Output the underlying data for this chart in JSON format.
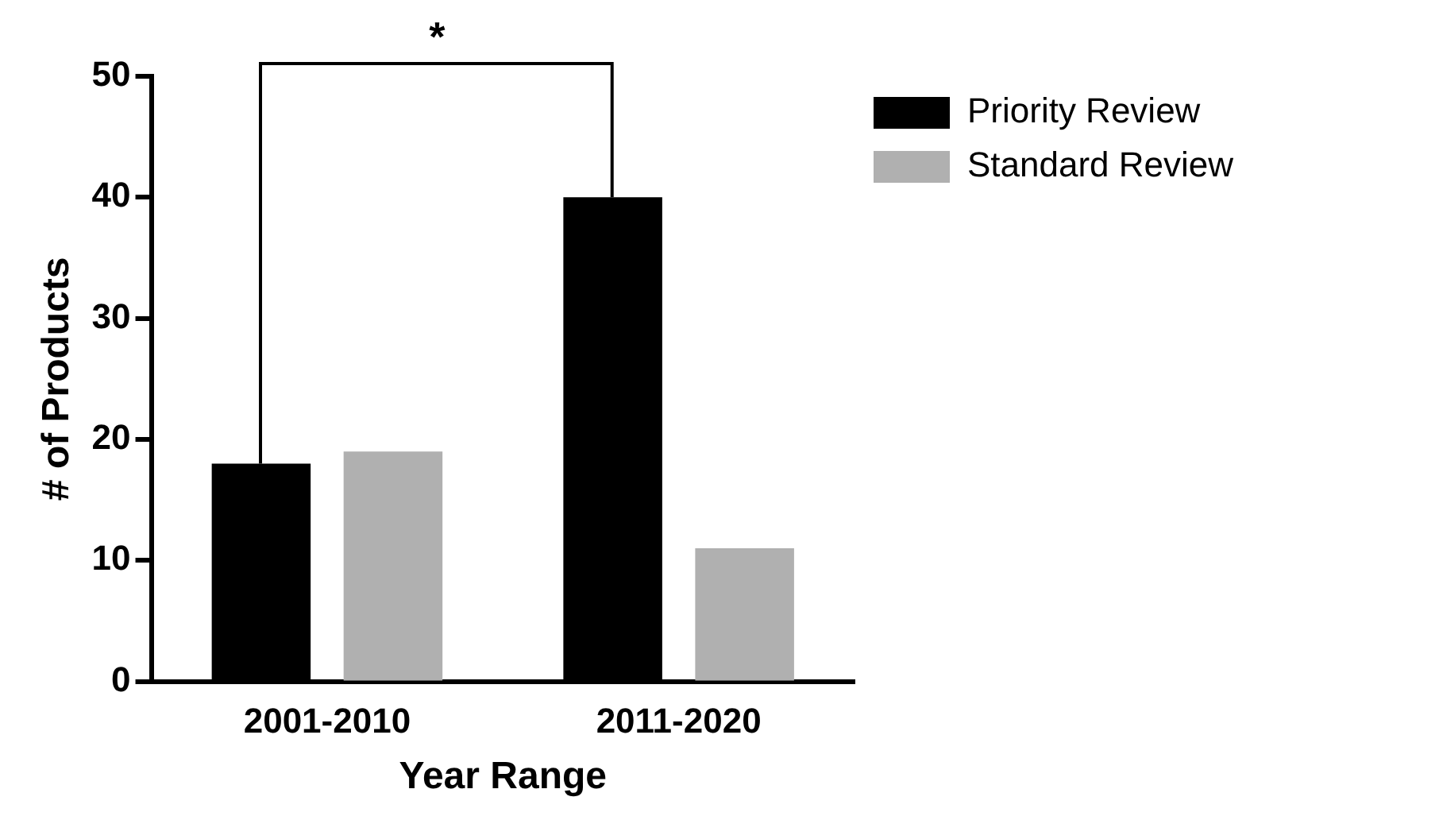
{
  "chart_data": {
    "type": "bar",
    "xlabel": "Year Range",
    "ylabel": "# of Products",
    "categories": [
      "2001-2010",
      "2011-2020"
    ],
    "series": [
      {
        "name": "Priority Review",
        "color": "#000000",
        "values": [
          18,
          40
        ]
      },
      {
        "name": "Standard Review",
        "color": "#b0b0b0",
        "values": [
          19,
          11
        ]
      }
    ],
    "ylim": [
      0,
      50
    ],
    "yticks": [
      0,
      10,
      20,
      30,
      40,
      50
    ],
    "grid": false,
    "legend": "top right",
    "annotations": [
      "*"
    ]
  }
}
